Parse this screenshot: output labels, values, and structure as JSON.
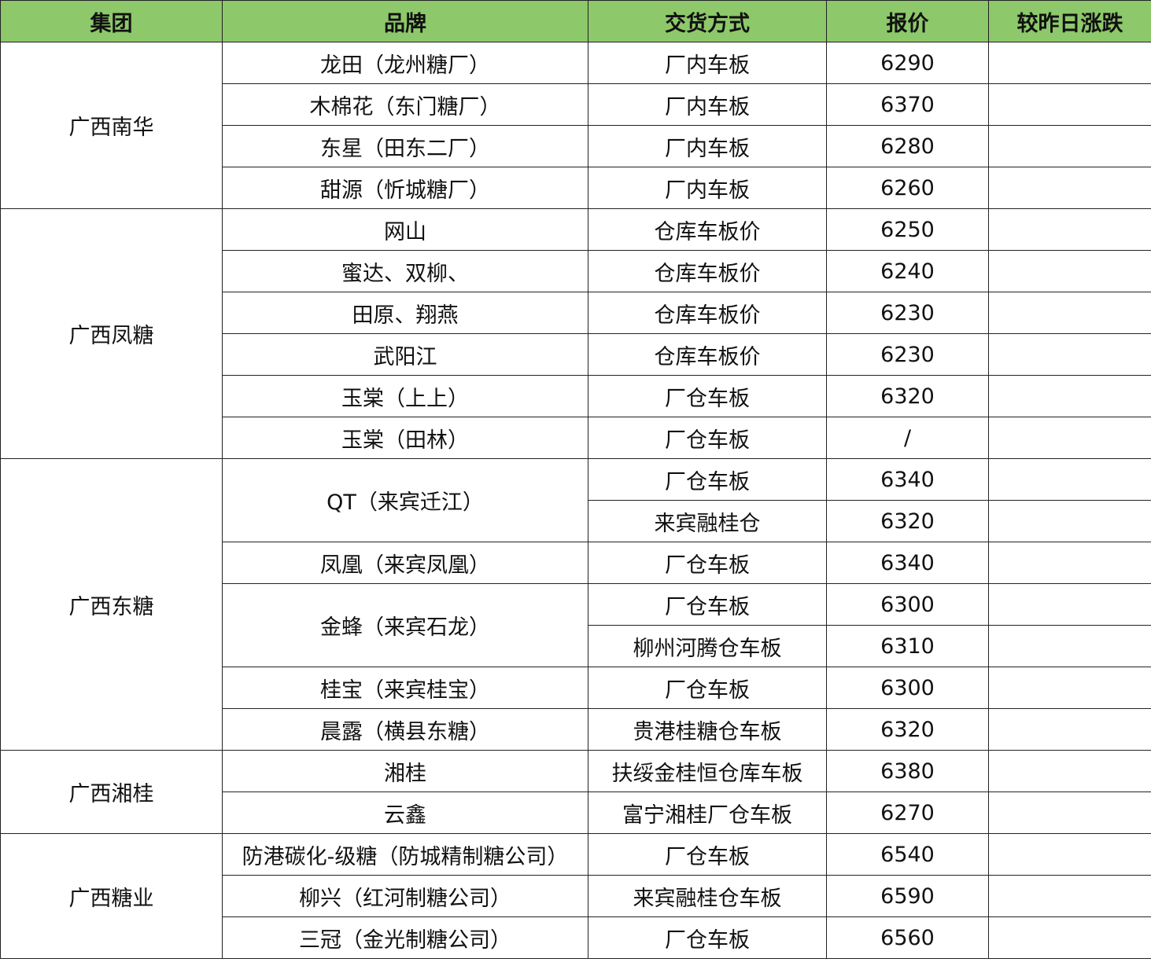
{
  "header": {
    "columns": [
      "集团",
      "品牌",
      "交货方式",
      "报价",
      "较昨日涨跌"
    ],
    "bg_color": "#8dc86a"
  },
  "groups": [
    {
      "name": "广西南华",
      "brands": [
        {
          "name": "龙田（龙州糖厂）",
          "deliveries": [
            {
              "method": "厂内车板",
              "price": "6290",
              "change": ""
            }
          ]
        },
        {
          "name": "木棉花（东门糖厂）",
          "deliveries": [
            {
              "method": "厂内车板",
              "price": "6370",
              "change": ""
            }
          ]
        },
        {
          "name": "东星（田东二厂）",
          "deliveries": [
            {
              "method": "厂内车板",
              "price": "6280",
              "change": ""
            }
          ]
        },
        {
          "name": "甜源（忻城糖厂）",
          "deliveries": [
            {
              "method": "厂内车板",
              "price": "6260",
              "change": ""
            }
          ]
        }
      ]
    },
    {
      "name": "广西凤糖",
      "brands": [
        {
          "name": "网山",
          "deliveries": [
            {
              "method": "仓库车板价",
              "price": "6250",
              "change": ""
            }
          ]
        },
        {
          "name": "蜜达、双柳、",
          "deliveries": [
            {
              "method": "仓库车板价",
              "price": "6240",
              "change": ""
            }
          ]
        },
        {
          "name": "田原、翔燕",
          "deliveries": [
            {
              "method": "仓库车板价",
              "price": "6230",
              "change": ""
            }
          ]
        },
        {
          "name": "武阳江",
          "deliveries": [
            {
              "method": "仓库车板价",
              "price": "6230",
              "change": ""
            }
          ]
        },
        {
          "name": "玉棠（上上）",
          "deliveries": [
            {
              "method": "厂仓车板",
              "price": "6320",
              "change": ""
            }
          ]
        },
        {
          "name": "玉棠（田林）",
          "deliveries": [
            {
              "method": "厂仓车板",
              "price": "/",
              "change": ""
            }
          ]
        }
      ]
    },
    {
      "name": "广西东糖",
      "brands": [
        {
          "name": "QT（来宾迁江）",
          "deliveries": [
            {
              "method": "厂仓车板",
              "price": "6340",
              "change": ""
            },
            {
              "method": "来宾融桂仓",
              "price": "6320",
              "change": ""
            }
          ]
        },
        {
          "name": "凤凰（来宾凤凰）",
          "deliveries": [
            {
              "method": "厂仓车板",
              "price": "6340",
              "change": ""
            }
          ]
        },
        {
          "name": "金蜂（来宾石龙）",
          "deliveries": [
            {
              "method": "厂仓车板",
              "price": "6300",
              "change": ""
            },
            {
              "method": "柳州河腾仓车板",
              "price": "6310",
              "change": ""
            }
          ]
        },
        {
          "name": "桂宝（来宾桂宝）",
          "deliveries": [
            {
              "method": "厂仓车板",
              "price": "6300",
              "change": ""
            }
          ]
        },
        {
          "name": "晨露（横县东糖）",
          "deliveries": [
            {
              "method": "贵港桂糖仓车板",
              "price": "6320",
              "change": ""
            }
          ]
        }
      ]
    },
    {
      "name": "广西湘桂",
      "brands": [
        {
          "name": "湘桂",
          "deliveries": [
            {
              "method": "扶绥金桂恒仓库车板",
              "price": "6380",
              "change": ""
            }
          ]
        },
        {
          "name": "云鑫",
          "deliveries": [
            {
              "method": "富宁湘桂厂仓车板",
              "price": "6270",
              "change": ""
            }
          ]
        }
      ]
    },
    {
      "name": "广西糖业",
      "brands": [
        {
          "name": "防港碳化-级糖（防城精制糖公司）",
          "deliveries": [
            {
              "method": "厂仓车板",
              "price": "6540",
              "change": ""
            }
          ]
        },
        {
          "name": "柳兴（红河制糖公司）",
          "deliveries": [
            {
              "method": "来宾融桂仓车板",
              "price": "6590",
              "change": ""
            }
          ]
        },
        {
          "name": "三冠（金光制糖公司）",
          "deliveries": [
            {
              "method": "厂仓车板",
              "price": "6560",
              "change": ""
            }
          ]
        }
      ]
    }
  ]
}
